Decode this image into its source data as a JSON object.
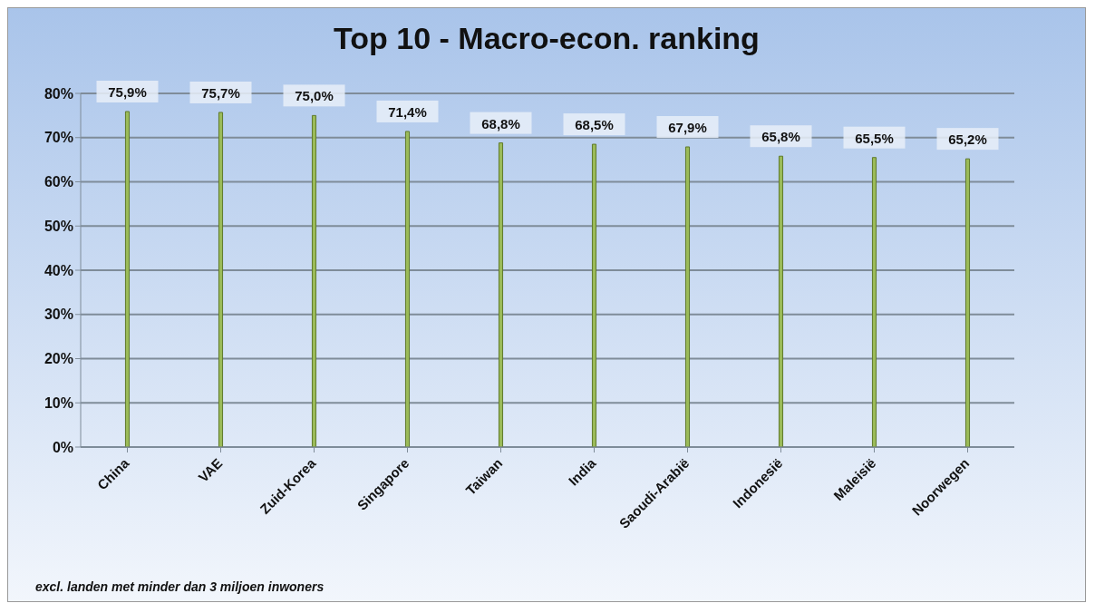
{
  "chart_data": {
    "type": "bar",
    "title": "Top 10 - Macro-econ. ranking",
    "categories": [
      "China",
      "VAE",
      "Zuid-Korea",
      "Singapore",
      "Taiwan",
      "India",
      "Saoudi-Arabië",
      "Indonesië",
      "Maleisië",
      "Noorwegen"
    ],
    "values": [
      75.9,
      75.7,
      75.0,
      71.4,
      68.8,
      68.5,
      67.9,
      65.8,
      65.5,
      65.2
    ],
    "value_labels": [
      "75,9%",
      "75,7%",
      "75,0%",
      "71,4%",
      "68,8%",
      "68,5%",
      "67,9%",
      "65,8%",
      "65,5%",
      "65,2%"
    ],
    "color": "#9bbb59",
    "ylim": [
      0,
      80
    ],
    "yticks": [
      {
        "value": 0,
        "label": "0%"
      },
      {
        "value": 10,
        "label": "10%"
      },
      {
        "value": 20,
        "label": "20%"
      },
      {
        "value": 30,
        "label": "30%"
      },
      {
        "value": 40,
        "label": "40%"
      },
      {
        "value": 50,
        "label": "50%"
      },
      {
        "value": 60,
        "label": "60%"
      },
      {
        "value": 70,
        "label": "70%"
      },
      {
        "value": 80,
        "label": "80%"
      }
    ],
    "grid": "y",
    "annotations": [
      "excl. landen met minder dan 3 miljoen inwoners"
    ]
  }
}
